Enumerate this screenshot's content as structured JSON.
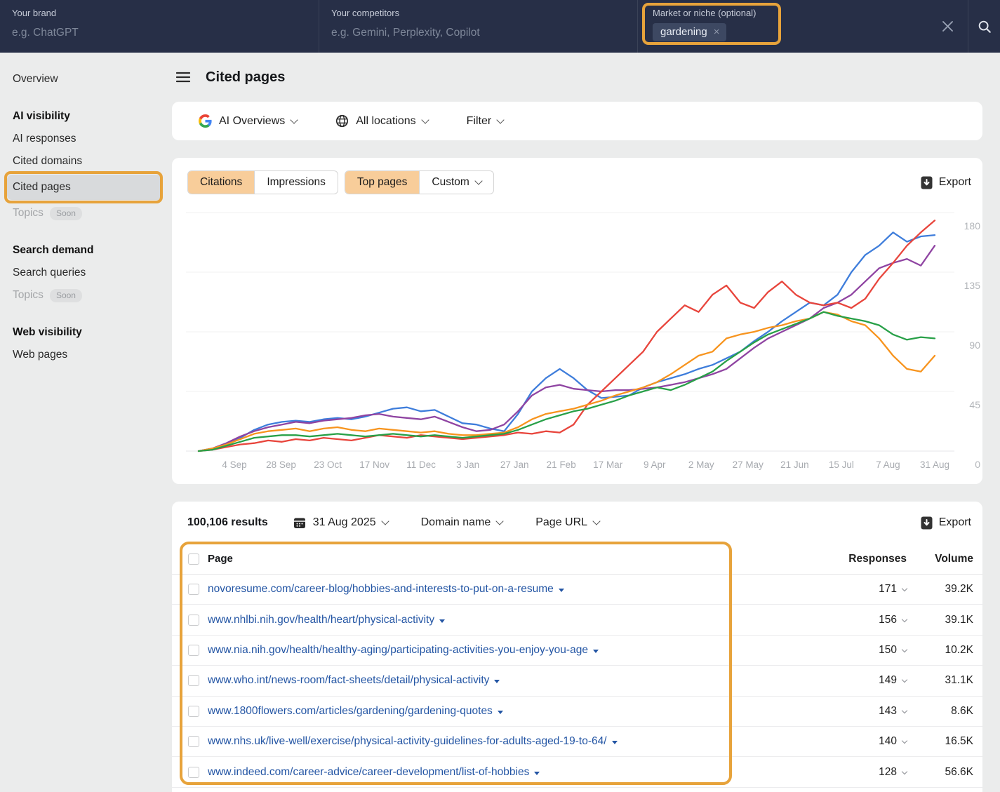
{
  "colors": {
    "annotation": "#e7a33b",
    "topbar_bg": "#272f47",
    "active_tab_bg": "#f8cd9a",
    "link_blue": "#2355a4",
    "sidebar_selected_bg": "#d8dadc"
  },
  "topbar": {
    "brand": {
      "label": "Your brand",
      "placeholder": "e.g. ChatGPT"
    },
    "competitors": {
      "label": "Your competitors",
      "placeholder": "e.g. Gemini, Perplexity, Copilot"
    },
    "market": {
      "label": "Market or niche (optional)",
      "tag": "gardening",
      "tag_remove": "×"
    }
  },
  "sidebar": {
    "items": [
      {
        "label": "Overview"
      },
      {
        "label": "AI visibility"
      },
      {
        "label": "AI responses"
      },
      {
        "label": "Cited domains"
      },
      {
        "label": "Cited pages"
      },
      {
        "label": "Topics",
        "badge": "Soon"
      },
      {
        "label": "Search demand"
      },
      {
        "label": "Search queries"
      },
      {
        "label": "Topics",
        "badge": "Soon"
      },
      {
        "label": "Web visibility"
      },
      {
        "label": "Web pages"
      }
    ]
  },
  "header": {
    "title": "Cited pages"
  },
  "toolbar": {
    "engine": "AI Overviews",
    "location": "All locations",
    "filter": "Filter"
  },
  "chart_card": {
    "metric_tabs": [
      "Citations",
      "Impressions"
    ],
    "active_metric": "Citations",
    "mode_tabs": [
      "Top pages",
      "Custom"
    ],
    "active_mode": "Top pages",
    "export_label": "Export"
  },
  "chart_data": {
    "type": "line",
    "title": "",
    "xlabel": "",
    "ylabel": "",
    "ylim": [
      0,
      180
    ],
    "grid": "on",
    "y_axis_side": "right",
    "legend": "none",
    "x_ticks": [
      "4 Sep",
      "28 Sep",
      "23 Oct",
      "17 Nov",
      "11 Dec",
      "3 Jan",
      "27 Jan",
      "21 Feb",
      "17 Mar",
      "9 Apr",
      "2 May",
      "27 May",
      "21 Jun",
      "15 Jul",
      "7 Aug",
      "31 Aug"
    ],
    "y_ticks": [
      {
        "label": "180",
        "value": 180
      },
      {
        "label": "135",
        "value": 135
      },
      {
        "label": "90",
        "value": 90
      },
      {
        "label": "45",
        "value": 45
      },
      {
        "label": "0",
        "value": 0
      }
    ],
    "series": [
      {
        "name": "blue-line",
        "color": "#3e7ddb",
        "values": [
          0,
          2,
          5,
          10,
          16,
          20,
          22,
          23,
          22,
          24,
          25,
          24,
          26,
          29,
          32,
          33,
          30,
          31,
          26,
          21,
          20,
          17,
          15,
          28,
          45,
          55,
          62,
          55,
          46,
          40,
          41,
          42,
          48,
          52,
          55,
          58,
          62,
          65,
          70,
          75,
          83,
          90,
          98,
          105,
          112,
          110,
          118,
          135,
          148,
          155,
          165,
          158,
          162,
          163
        ]
      },
      {
        "name": "purple-line",
        "color": "#8f44a2",
        "values": [
          0,
          2,
          6,
          11,
          15,
          18,
          20,
          22,
          21,
          23,
          24,
          25,
          27,
          28,
          26,
          25,
          24,
          26,
          22,
          18,
          15,
          16,
          20,
          30,
          42,
          48,
          50,
          47,
          46,
          45,
          46,
          46,
          47,
          48,
          50,
          52,
          55,
          58,
          62,
          70,
          78,
          85,
          90,
          95,
          100,
          108,
          112,
          118,
          128,
          138,
          142,
          145,
          140,
          155
        ]
      },
      {
        "name": "red-line",
        "color": "#e8453c",
        "values": [
          0,
          1,
          3,
          5,
          6,
          8,
          7,
          9,
          8,
          10,
          9,
          8,
          10,
          12,
          11,
          10,
          12,
          11,
          10,
          9,
          10,
          11,
          12,
          14,
          13,
          15,
          14,
          20,
          35,
          45,
          55,
          65,
          75,
          90,
          100,
          110,
          105,
          118,
          125,
          112,
          108,
          120,
          128,
          118,
          112,
          110,
          112,
          108,
          115,
          130,
          142,
          155,
          165,
          174
        ]
      },
      {
        "name": "orange-line",
        "color": "#f7941e",
        "values": [
          0,
          2,
          5,
          9,
          13,
          15,
          16,
          17,
          15,
          17,
          18,
          16,
          15,
          17,
          16,
          15,
          14,
          15,
          13,
          12,
          12,
          13,
          14,
          18,
          24,
          28,
          30,
          32,
          35,
          38,
          42,
          45,
          48,
          52,
          58,
          65,
          72,
          75,
          85,
          88,
          90,
          93,
          95,
          98,
          100,
          105,
          103,
          98,
          95,
          85,
          72,
          62,
          60,
          72
        ]
      },
      {
        "name": "green-line",
        "color": "#28a048",
        "values": [
          0,
          1,
          4,
          7,
          10,
          11,
          12,
          12,
          11,
          12,
          13,
          12,
          11,
          12,
          13,
          12,
          11,
          12,
          11,
          10,
          11,
          12,
          13,
          16,
          20,
          24,
          27,
          30,
          32,
          35,
          38,
          42,
          45,
          48,
          46,
          50,
          55,
          60,
          68,
          75,
          82,
          88,
          92,
          96,
          100,
          105,
          102,
          100,
          98,
          95,
          88,
          84,
          86,
          85
        ]
      }
    ]
  },
  "results_bar": {
    "count": "100,106 results",
    "date": "31 Aug 2025",
    "group_by": "Domain name",
    "url_mode": "Page URL",
    "export_label": "Export"
  },
  "table": {
    "columns": {
      "page": "Page",
      "responses": "Responses",
      "volume": "Volume"
    },
    "rows": [
      {
        "page": "novoresume.com/career-blog/hobbies-and-interests-to-put-on-a-resume",
        "responses": "171",
        "volume": "39.2K"
      },
      {
        "page": "www.nhlbi.nih.gov/health/heart/physical-activity",
        "responses": "156",
        "volume": "39.1K"
      },
      {
        "page": "www.nia.nih.gov/health/healthy-aging/participating-activities-you-enjoy-you-age",
        "responses": "150",
        "volume": "10.2K"
      },
      {
        "page": "www.who.int/news-room/fact-sheets/detail/physical-activity",
        "responses": "149",
        "volume": "31.1K"
      },
      {
        "page": "www.1800flowers.com/articles/gardening/gardening-quotes",
        "responses": "143",
        "volume": "8.6K"
      },
      {
        "page": "www.nhs.uk/live-well/exercise/physical-activity-guidelines-for-adults-aged-19-to-64/",
        "responses": "140",
        "volume": "16.5K"
      },
      {
        "page": "www.indeed.com/career-advice/career-development/list-of-hobbies",
        "responses": "128",
        "volume": "56.6K"
      }
    ]
  }
}
